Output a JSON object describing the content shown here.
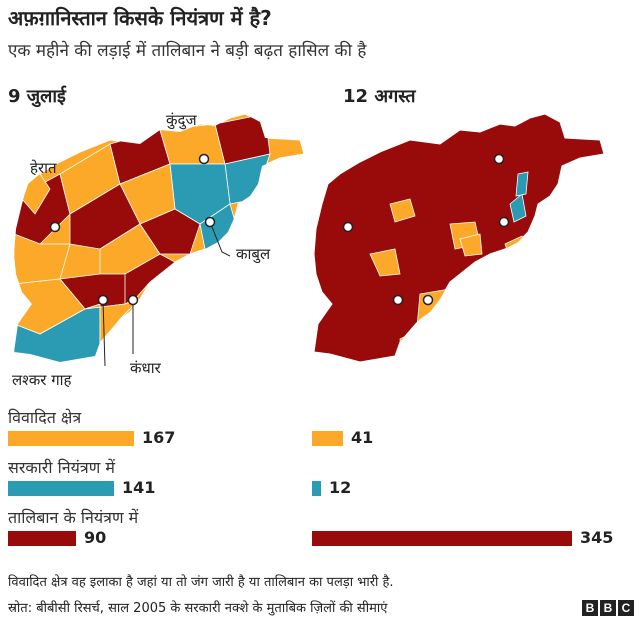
{
  "header": {
    "title": "अफ़ग़ानिस्तान किसके नियंत्रण में है?",
    "subtitle": "एक महीने की लड़ाई में तालिबान ने बड़ी बढ़त हासिल की है"
  },
  "maps": [
    {
      "date": "9 जुलाई"
    },
    {
      "date": "12 अगस्त"
    }
  ],
  "cities": {
    "kunduz": "कुंदुज",
    "herat": "हेरात",
    "kabul": "काबुल",
    "lashkar_gah": "लश्कर गाह",
    "kandahar": "कंधार"
  },
  "colors": {
    "contested": "#fca828",
    "government": "#2a9bb3",
    "taliban": "#990a0a"
  },
  "chart_data": {
    "type": "bar",
    "categories": [
      "विवादित क्षेत्र",
      "सरकारी नियंत्रण में",
      "तालिबान के नियंत्रण में"
    ],
    "series": [
      {
        "name": "9 जुलाई",
        "values": [
          167,
          141,
          90
        ]
      },
      {
        "name": "12 अगस्त",
        "values": [
          41,
          12,
          345
        ]
      }
    ]
  },
  "footer": {
    "note": "विवादित क्षेत्र वह इलाका है जहां या तो जंग जारी है या तालिबान का पलड़ा भारी है.",
    "source": "स्रोत: बीबीसी रिसर्च, साल 2005 के सरकारी नक्शे के मुताबिक ज़िलों की सीमाएं",
    "logo": "BBC"
  }
}
